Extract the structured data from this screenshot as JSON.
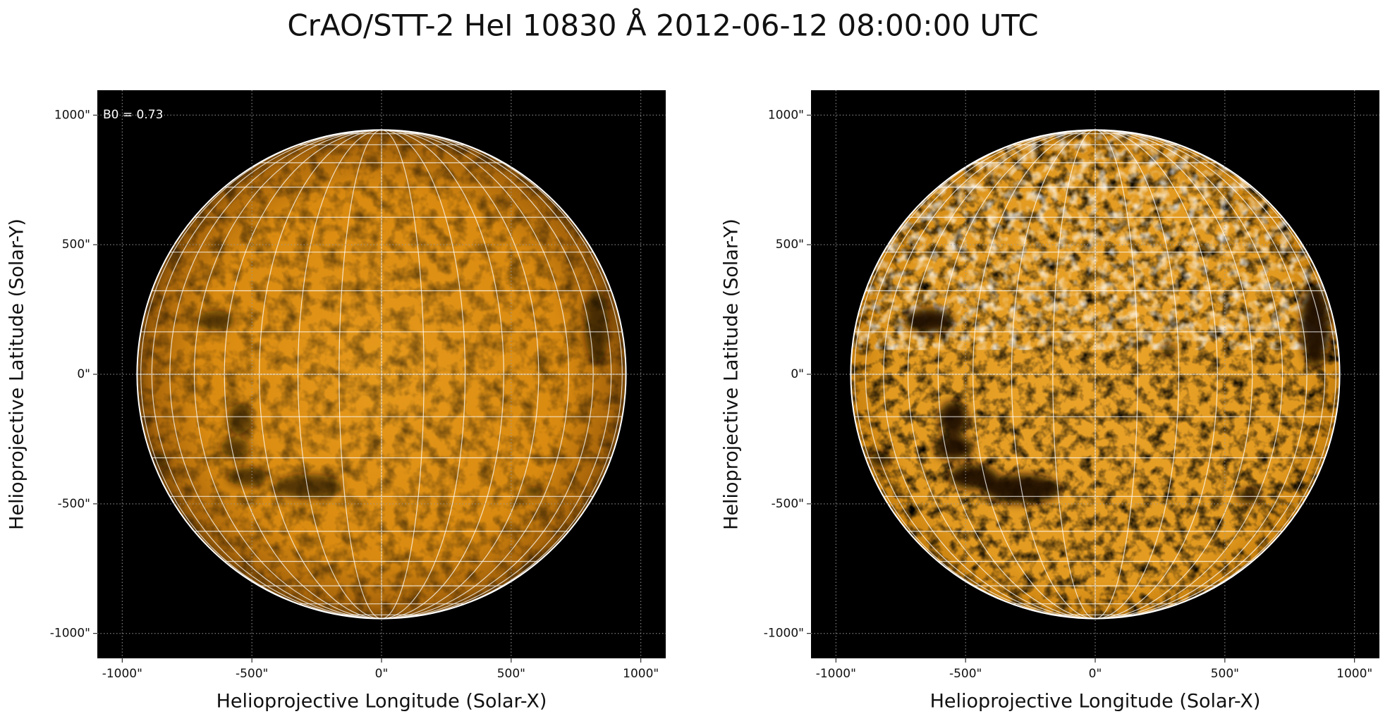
{
  "title": "CrAO/STT-2 HeI 10830 Å 2012-06-12 08:00:00 UTC",
  "chart_data": [
    {
      "type": "image",
      "annotation": "B0 = 0.73",
      "xlabel": "Helioprojective Longitude (Solar-X)",
      "ylabel": "Helioprojective Latitude (Solar-Y)",
      "xlim": [
        -1096,
        1096
      ],
      "ylim": [
        -1096,
        1096
      ],
      "xticks": [
        {
          "value": -1000,
          "label": "-1000\""
        },
        {
          "value": -500,
          "label": "-500\""
        },
        {
          "value": 0,
          "label": "0\""
        },
        {
          "value": 500,
          "label": "500\""
        },
        {
          "value": 1000,
          "label": "1000\""
        }
      ],
      "yticks": [
        {
          "value": -1000,
          "label": "-1000\""
        },
        {
          "value": -500,
          "label": "-500\""
        },
        {
          "value": 0,
          "label": "0\""
        },
        {
          "value": 500,
          "label": "500\""
        },
        {
          "value": 1000,
          "label": "1000\""
        }
      ]
    },
    {
      "type": "image",
      "xlabel": "Helioprojective Longitude (Solar-X)",
      "ylabel": "Helioprojective Latitude (Solar-Y)",
      "xlim": [
        -1096,
        1096
      ],
      "ylim": [
        -1096,
        1096
      ],
      "xticks": [
        {
          "value": -1000,
          "label": "-1000\""
        },
        {
          "value": -500,
          "label": "-500\""
        },
        {
          "value": 0,
          "label": "0\""
        },
        {
          "value": 500,
          "label": "500\""
        },
        {
          "value": 1000,
          "label": "1000\""
        }
      ],
      "yticks": [
        {
          "value": -1000,
          "label": "-1000\""
        },
        {
          "value": -500,
          "label": "-500\""
        },
        {
          "value": 0,
          "label": "0\""
        },
        {
          "value": 500,
          "label": "500\""
        },
        {
          "value": 1000,
          "label": "1000\""
        }
      ]
    }
  ]
}
